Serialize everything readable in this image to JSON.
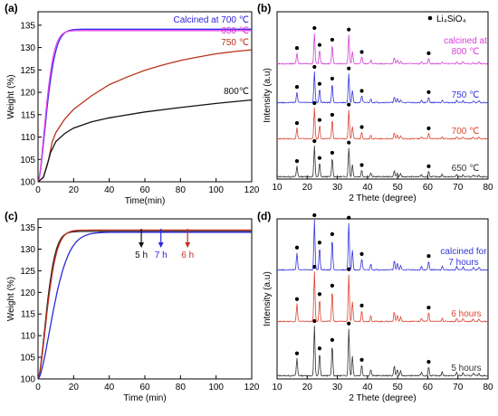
{
  "chart_data": [
    {
      "panel_label": "(a)",
      "type": "line",
      "xlabel": "Time(min)",
      "ylabel": "Weight (%)",
      "xlim": [
        0,
        120
      ],
      "ylim": [
        100,
        138
      ],
      "xticks": [
        0,
        20,
        40,
        60,
        80,
        100,
        120
      ],
      "yticks": [
        100,
        105,
        110,
        115,
        120,
        125,
        130,
        135
      ],
      "series": [
        {
          "name": "Calcined at 700 ℃",
          "color": "#3a2df0",
          "label_color": "#2a1fd8",
          "final": 134.1,
          "tau": 6.6
        },
        {
          "name": "650 ℃",
          "color": "#e542e5",
          "label_color": "#d334d3",
          "final": 133.8,
          "tau": 6.0
        },
        {
          "name": "750 ℃",
          "color": "#b8321a",
          "label_color": "#b8321a",
          "points": [
            [
              0,
              100
            ],
            [
              3,
              101
            ],
            [
              6,
              105
            ],
            [
              8,
              109
            ],
            [
              10,
              111
            ],
            [
              15,
              114
            ],
            [
              20,
              116.2
            ],
            [
              30,
              119.2
            ],
            [
              40,
              121.7
            ],
            [
              50,
              123.4
            ],
            [
              60,
              124.9
            ],
            [
              70,
              126.1
            ],
            [
              80,
              127.1
            ],
            [
              90,
              127.9
            ],
            [
              100,
              128.6
            ],
            [
              110,
              129.1
            ],
            [
              120,
              129.5
            ]
          ]
        },
        {
          "name": "800℃",
          "color": "#111111",
          "label_color": "#111111",
          "points": [
            [
              0,
              100
            ],
            [
              3,
              101
            ],
            [
              5,
              103.5
            ],
            [
              7,
              106.5
            ],
            [
              10,
              109
            ],
            [
              15,
              110.8
            ],
            [
              20,
              112
            ],
            [
              30,
              113.4
            ],
            [
              40,
              114.3
            ],
            [
              60,
              115.6
            ],
            [
              80,
              116.6
            ],
            [
              100,
              117.5
            ],
            [
              120,
              118.3
            ]
          ]
        }
      ]
    },
    {
      "panel_label": "(b)",
      "type": "line",
      "title": "",
      "xlabel": "2 Thete (degree)",
      "ylabel": "Intensity (a.u)",
      "xlim": [
        10,
        80
      ],
      "xticks": [
        10,
        20,
        30,
        40,
        50,
        60,
        70,
        80
      ],
      "legend": "● Li₄SiO₄",
      "markers_at": [
        16.6,
        22.4,
        24.1,
        28.3,
        33.8,
        38.1,
        60.3
      ],
      "series": [
        {
          "name": "650 ℃",
          "color": "#333333"
        },
        {
          "name": "700 ℃",
          "color": "#dd4433"
        },
        {
          "name": "750 ℃",
          "color": "#3333dd"
        },
        {
          "name": "calcined at 800 ℃",
          "label_lines": [
            "calcined at",
            "800 ℃"
          ],
          "color": "#d640d6"
        }
      ]
    },
    {
      "panel_label": "(c)",
      "type": "line",
      "xlabel": "Time (min)",
      "ylabel": "Weight (%)",
      "xlim": [
        0,
        120
      ],
      "ylim": [
        100,
        137
      ],
      "xticks": [
        0,
        20,
        40,
        60,
        80,
        100,
        120
      ],
      "yticks": [
        100,
        105,
        110,
        115,
        120,
        125,
        130,
        135
      ],
      "annotations": [
        {
          "text": "5 h",
          "x": 58,
          "color": "#111111"
        },
        {
          "text": "7 h",
          "x": 69,
          "color": "#2a2ad8"
        },
        {
          "text": "6 h",
          "x": 84,
          "color": "#c03020"
        }
      ],
      "series": [
        {
          "name": "5 h",
          "color": "#222222",
          "final": 134.1,
          "tau": 6.5
        },
        {
          "name": "6 h",
          "color": "#c03020",
          "final": 134.4,
          "tau": 7.0
        },
        {
          "name": "7 h",
          "color": "#2a2ad8",
          "final": 133.9,
          "tau": 11.5
        }
      ]
    },
    {
      "panel_label": "(d)",
      "type": "line",
      "xlabel": "2 Thete (degree)",
      "ylabel": "Intensity (a.u)",
      "xlim": [
        10,
        80
      ],
      "xticks": [
        10,
        20,
        30,
        40,
        50,
        60,
        70,
        80
      ],
      "markers_at": [
        16.6,
        22.4,
        24.1,
        28.3,
        33.8,
        38.1,
        60.3
      ],
      "series": [
        {
          "name": "5 hours",
          "color": "#333333"
        },
        {
          "name": "6 hours",
          "color": "#dd4433"
        },
        {
          "name": "calcined for 7 hours",
          "label_lines": [
            "calcined for",
            "7 hours"
          ],
          "color": "#3333dd"
        }
      ]
    }
  ]
}
